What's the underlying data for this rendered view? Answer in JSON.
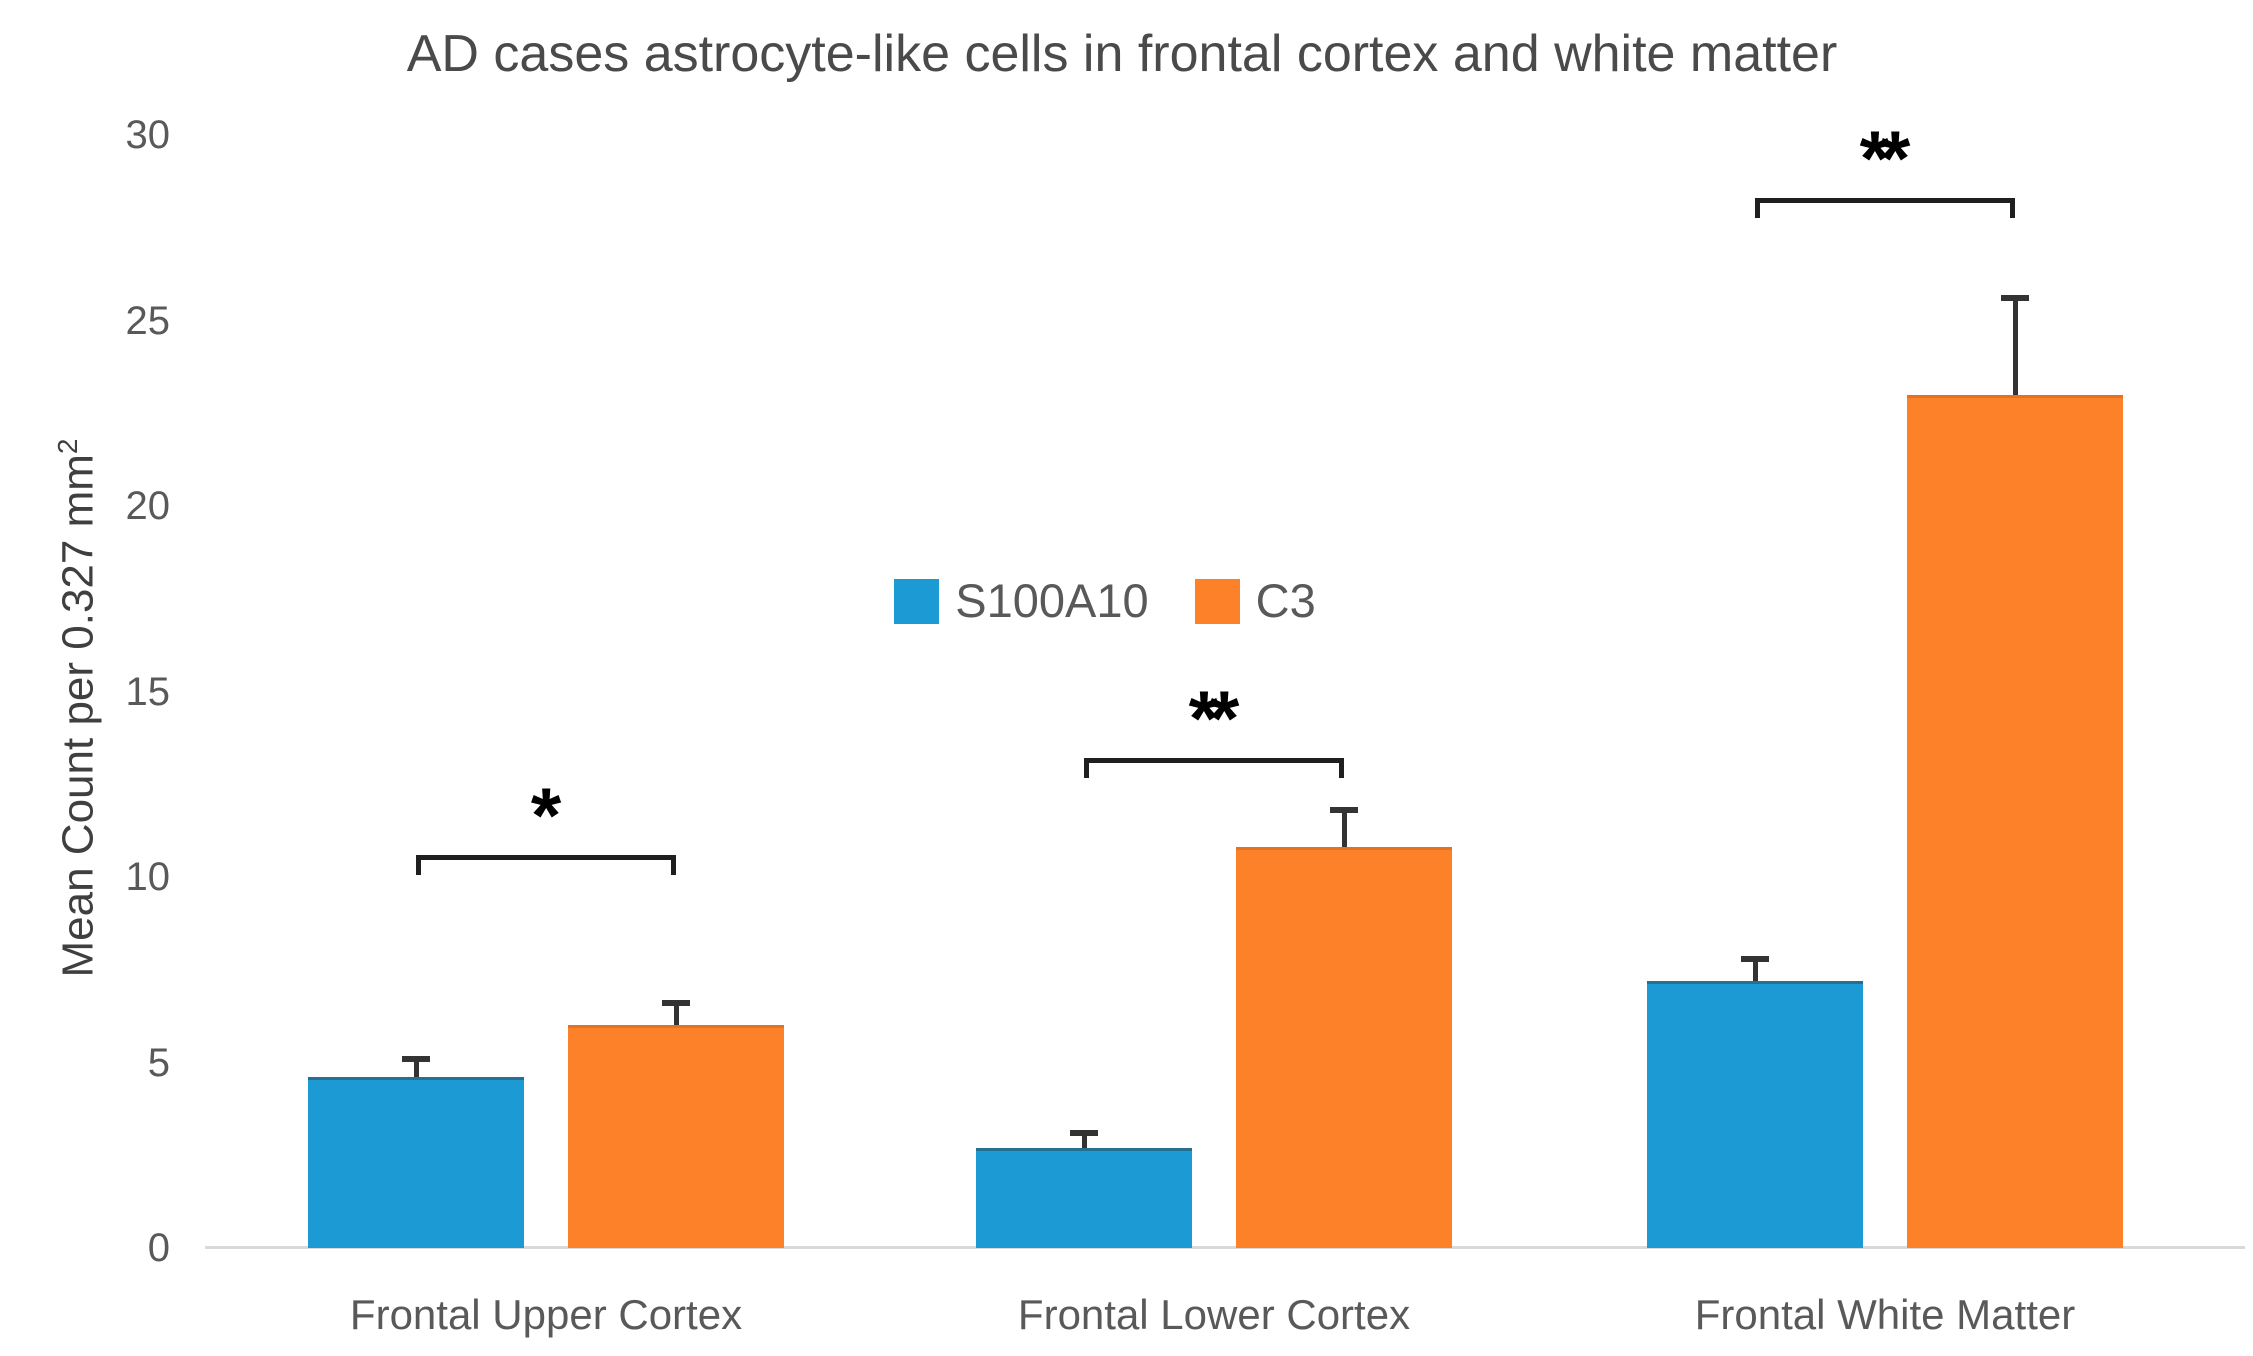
{
  "chart_data": {
    "type": "bar",
    "title": "AD cases astrocyte-like cells in frontal cortex and white matter",
    "xlabel": "",
    "ylabel": "Mean Count per 0.327 mm",
    "ylabel_superscript": "2",
    "categories": [
      "Frontal Upper Cortex",
      "Frontal Lower Cortex",
      "Frontal White Matter"
    ],
    "series": [
      {
        "name": "S100A10",
        "color": "#1b9ad3",
        "values": [
          4.6,
          2.7,
          7.2
        ],
        "error_bars": [
          0.5,
          0.4,
          0.6
        ]
      },
      {
        "name": "C3",
        "color": "#fc8129",
        "values": [
          6.0,
          10.8,
          23.0
        ],
        "error_bars": [
          0.6,
          1.0,
          2.6
        ]
      }
    ],
    "y_axis": {
      "min": 0,
      "max": 30,
      "tick_step": 5,
      "ticks": [
        0,
        5,
        10,
        15,
        20,
        25,
        30
      ]
    },
    "grid": false,
    "legend": {
      "position": "center-middle",
      "entries": [
        "S100A10",
        "C3"
      ]
    },
    "significance": [
      {
        "category_index": 0,
        "label": "*",
        "bracket_top_value": 10.6
      },
      {
        "category_index": 1,
        "label": "**",
        "bracket_top_value": 13.2
      },
      {
        "category_index": 2,
        "label": "**",
        "bracket_top_value": 28.3
      }
    ],
    "colors": {
      "axis_line": "#d9d9d9",
      "tick_text": "#595959",
      "title_text": "#4a4a4a",
      "error_bar": "#333333",
      "bracket": "#1f1f1f"
    }
  }
}
